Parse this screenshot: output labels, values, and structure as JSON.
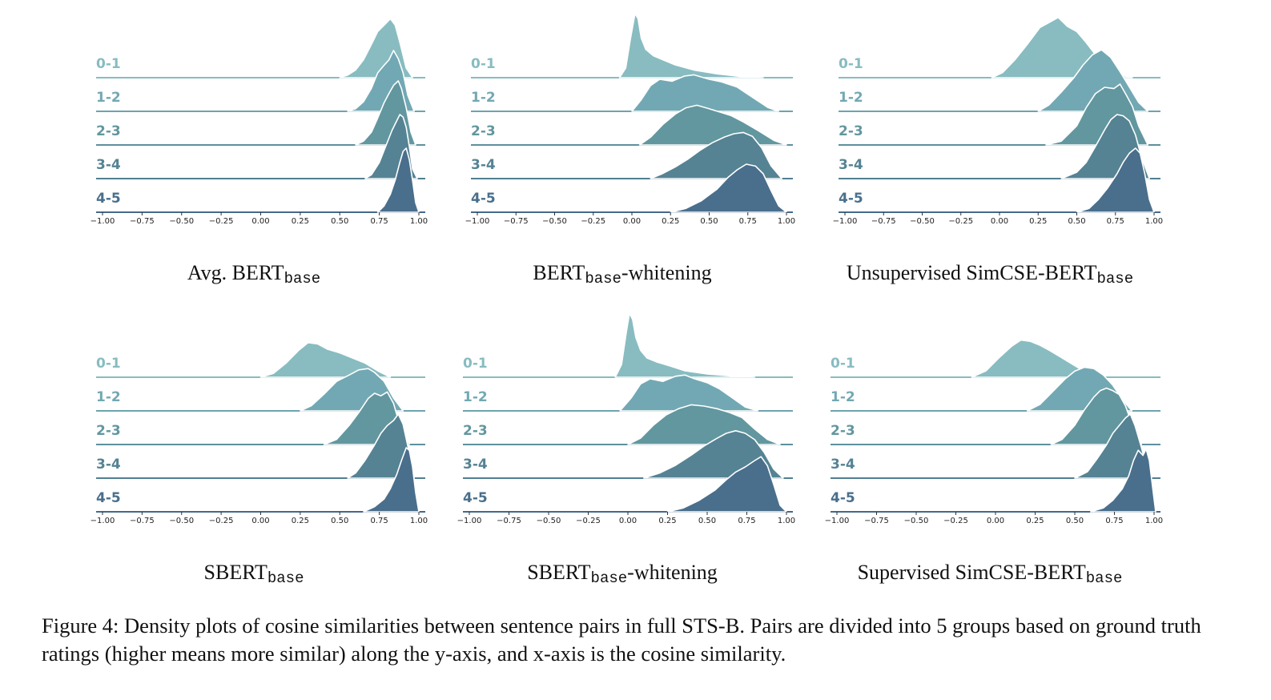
{
  "caption": "Figure 4: Density plots of cosine similarities between sentence pairs in full STS-B. Pairs are divided into 5 groups based on ground truth ratings (higher means more similar) along the y-axis, and x-axis is the cosine similarity.",
  "colors": {
    "groups": [
      "#88bcc0",
      "#72a8b3",
      "#62979f",
      "#558393",
      "#4a6f8c"
    ],
    "baseline": [
      "#88bcc0",
      "#6ea3ae",
      "#5e909d",
      "#517f91",
      "#46698a"
    ],
    "outline": "#ffffff"
  },
  "chart_data": [
    {
      "type": "ridgeline",
      "title_main": "Avg. BERT",
      "title_sub": "base",
      "title_suffix": "",
      "groups": [
        "0-1",
        "1-2",
        "2-3",
        "3-4",
        "4-5"
      ],
      "xticks": [
        "−1.00",
        "−0.75",
        "−0.50",
        "−0.25",
        "0.00",
        "0.25",
        "0.50",
        "0.75",
        "1.00"
      ],
      "xlim": [
        -1.0,
        1.1
      ],
      "series": [
        {
          "name": "0-1",
          "x": [
            0.5,
            0.55,
            0.6,
            0.65,
            0.7,
            0.74,
            0.78,
            0.82,
            0.85,
            0.88,
            0.92,
            0.96
          ],
          "y": [
            0,
            0.04,
            0.12,
            0.28,
            0.52,
            0.72,
            0.82,
            0.92,
            0.82,
            0.55,
            0.15,
            0
          ]
        },
        {
          "name": "1-2",
          "x": [
            0.55,
            0.6,
            0.65,
            0.7,
            0.74,
            0.78,
            0.81,
            0.84,
            0.87,
            0.9,
            0.93,
            0.97
          ],
          "y": [
            0,
            0.04,
            0.15,
            0.36,
            0.6,
            0.72,
            0.8,
            0.95,
            0.82,
            0.6,
            0.25,
            0
          ]
        },
        {
          "name": "2-3",
          "x": [
            0.6,
            0.65,
            0.7,
            0.74,
            0.78,
            0.81,
            0.84,
            0.87,
            0.89,
            0.92,
            0.95,
            0.98
          ],
          "y": [
            0,
            0.06,
            0.2,
            0.42,
            0.66,
            0.8,
            0.93,
            1.0,
            0.88,
            0.58,
            0.2,
            0
          ]
        },
        {
          "name": "3-4",
          "x": [
            0.66,
            0.7,
            0.75,
            0.79,
            0.83,
            0.86,
            0.88,
            0.9,
            0.92,
            0.94,
            0.96,
            0.99
          ],
          "y": [
            0,
            0.06,
            0.25,
            0.5,
            0.75,
            0.9,
            1.0,
            0.96,
            0.8,
            0.5,
            0.15,
            0
          ]
        },
        {
          "name": "4-5",
          "x": [
            0.74,
            0.78,
            0.82,
            0.85,
            0.88,
            0.9,
            0.92,
            0.94,
            0.96,
            0.98,
            1.0
          ],
          "y": [
            0,
            0.1,
            0.28,
            0.5,
            0.78,
            0.95,
            1.0,
            0.82,
            0.5,
            0.15,
            0
          ]
        }
      ]
    },
    {
      "type": "ridgeline",
      "title_main": "BERT",
      "title_sub": "base",
      "title_suffix": "-whitening",
      "groups": [
        "0-1",
        "1-2",
        "2-3",
        "3-4",
        "4-5"
      ],
      "xticks": [
        "−1.00",
        "−0.75",
        "−0.50",
        "−0.25",
        "0.00",
        "0.25",
        "0.50",
        "0.75",
        "1.00"
      ],
      "xlim": [
        -1.0,
        1.1
      ],
      "series": [
        {
          "name": "0-1",
          "x": [
            -0.08,
            -0.04,
            -0.01,
            0.02,
            0.04,
            0.06,
            0.09,
            0.14,
            0.2,
            0.28,
            0.4,
            0.55,
            0.7,
            0.85
          ],
          "y": [
            0,
            0.15,
            0.6,
            1.0,
            0.92,
            0.62,
            0.44,
            0.34,
            0.28,
            0.2,
            0.12,
            0.06,
            0.02,
            0
          ]
        },
        {
          "name": "1-2",
          "x": [
            0.0,
            0.06,
            0.12,
            0.18,
            0.26,
            0.34,
            0.4,
            0.5,
            0.58,
            0.68,
            0.78,
            0.88,
            0.95
          ],
          "y": [
            0,
            0.18,
            0.4,
            0.5,
            0.47,
            0.55,
            0.57,
            0.5,
            0.46,
            0.38,
            0.22,
            0.06,
            0
          ]
        },
        {
          "name": "2-3",
          "x": [
            0.05,
            0.12,
            0.2,
            0.28,
            0.35,
            0.42,
            0.48,
            0.56,
            0.64,
            0.72,
            0.82,
            0.92,
            1.0
          ],
          "y": [
            0,
            0.12,
            0.32,
            0.48,
            0.58,
            0.62,
            0.58,
            0.52,
            0.46,
            0.36,
            0.22,
            0.07,
            0
          ]
        },
        {
          "name": "3-4",
          "x": [
            0.12,
            0.2,
            0.28,
            0.36,
            0.44,
            0.52,
            0.6,
            0.66,
            0.72,
            0.78,
            0.84,
            0.9,
            0.97
          ],
          "y": [
            0,
            0.08,
            0.18,
            0.3,
            0.44,
            0.56,
            0.65,
            0.7,
            0.72,
            0.66,
            0.48,
            0.2,
            0
          ]
        },
        {
          "name": "4-5",
          "x": [
            0.25,
            0.35,
            0.45,
            0.55,
            0.62,
            0.68,
            0.74,
            0.8,
            0.85,
            0.9,
            0.95,
            1.0
          ],
          "y": [
            0,
            0.06,
            0.18,
            0.36,
            0.54,
            0.66,
            0.75,
            0.72,
            0.6,
            0.34,
            0.1,
            0
          ]
        }
      ]
    },
    {
      "type": "ridgeline",
      "title_main": "Unsupervised SimCSE-BERT",
      "title_sub": "base",
      "title_suffix": "",
      "groups": [
        "0-1",
        "1-2",
        "2-3",
        "3-4",
        "4-5"
      ],
      "xticks": [
        "−1.00",
        "−0.75",
        "−0.50",
        "−0.25",
        "0.00",
        "0.25",
        "0.50",
        "0.75",
        "1.00"
      ],
      "xlim": [
        -1.0,
        1.1
      ],
      "series": [
        {
          "name": "0-1",
          "x": [
            -0.05,
            0.02,
            0.1,
            0.18,
            0.26,
            0.32,
            0.38,
            0.44,
            0.5,
            0.56,
            0.62,
            0.7,
            0.78,
            0.86
          ],
          "y": [
            0,
            0.08,
            0.28,
            0.52,
            0.78,
            0.86,
            0.94,
            0.8,
            0.72,
            0.55,
            0.36,
            0.16,
            0.04,
            0
          ]
        },
        {
          "name": "1-2",
          "x": [
            0.25,
            0.32,
            0.4,
            0.48,
            0.54,
            0.6,
            0.66,
            0.72,
            0.78,
            0.84,
            0.9,
            0.96
          ],
          "y": [
            0,
            0.1,
            0.3,
            0.52,
            0.72,
            0.88,
            0.96,
            0.84,
            0.62,
            0.38,
            0.14,
            0
          ]
        },
        {
          "name": "2-3",
          "x": [
            0.3,
            0.4,
            0.5,
            0.56,
            0.62,
            0.68,
            0.74,
            0.78,
            0.82,
            0.86,
            0.9,
            0.96
          ],
          "y": [
            0,
            0.06,
            0.3,
            0.58,
            0.8,
            0.9,
            0.88,
            0.95,
            0.78,
            0.6,
            0.3,
            0
          ]
        },
        {
          "name": "3-4",
          "x": [
            0.4,
            0.5,
            0.56,
            0.62,
            0.68,
            0.72,
            0.76,
            0.8,
            0.84,
            0.88,
            0.92,
            0.97
          ],
          "y": [
            0,
            0.1,
            0.25,
            0.5,
            0.76,
            0.92,
            1.0,
            0.98,
            0.9,
            0.68,
            0.32,
            0
          ]
        },
        {
          "name": "4-5",
          "x": [
            0.5,
            0.58,
            0.64,
            0.7,
            0.76,
            0.8,
            0.84,
            0.88,
            0.91,
            0.94,
            0.97,
            1.0
          ],
          "y": [
            0,
            0.06,
            0.2,
            0.38,
            0.6,
            0.78,
            0.92,
            1.0,
            0.92,
            0.6,
            0.2,
            0
          ]
        }
      ]
    },
    {
      "type": "ridgeline",
      "title_main": "SBERT",
      "title_sub": "base",
      "title_suffix": "",
      "groups": [
        "0-1",
        "1-2",
        "2-3",
        "3-4",
        "4-5"
      ],
      "xticks": [
        "−1.00",
        "−0.75",
        "−0.50",
        "−0.25",
        "0.00",
        "0.25",
        "0.50",
        "0.75",
        "1.00"
      ],
      "xlim": [
        -1.0,
        1.1
      ],
      "series": [
        {
          "name": "0-1",
          "x": [
            0.0,
            0.08,
            0.16,
            0.24,
            0.3,
            0.36,
            0.42,
            0.5,
            0.58,
            0.66,
            0.74,
            0.82
          ],
          "y": [
            0,
            0.06,
            0.22,
            0.42,
            0.54,
            0.52,
            0.44,
            0.38,
            0.3,
            0.22,
            0.1,
            0
          ]
        },
        {
          "name": "1-2",
          "x": [
            0.25,
            0.32,
            0.4,
            0.48,
            0.56,
            0.62,
            0.68,
            0.72,
            0.78,
            0.84,
            0.9
          ],
          "y": [
            0,
            0.08,
            0.26,
            0.46,
            0.56,
            0.64,
            0.66,
            0.6,
            0.46,
            0.2,
            0
          ]
        },
        {
          "name": "2-3",
          "x": [
            0.4,
            0.48,
            0.56,
            0.62,
            0.68,
            0.72,
            0.76,
            0.8,
            0.84,
            0.88,
            0.94
          ],
          "y": [
            0,
            0.08,
            0.3,
            0.5,
            0.72,
            0.8,
            0.76,
            0.82,
            0.64,
            0.3,
            0
          ]
        },
        {
          "name": "3-4",
          "x": [
            0.55,
            0.6,
            0.66,
            0.72,
            0.76,
            0.8,
            0.84,
            0.87,
            0.9,
            0.93,
            0.97
          ],
          "y": [
            0,
            0.08,
            0.28,
            0.52,
            0.7,
            0.82,
            0.9,
            1.0,
            0.84,
            0.5,
            0
          ]
        },
        {
          "name": "4-5",
          "x": [
            0.65,
            0.72,
            0.78,
            0.82,
            0.86,
            0.89,
            0.92,
            0.94,
            0.96,
            0.98,
            1.0
          ],
          "y": [
            0,
            0.08,
            0.2,
            0.36,
            0.58,
            0.8,
            1.0,
            0.96,
            0.7,
            0.3,
            0
          ]
        }
      ]
    },
    {
      "type": "ridgeline",
      "title_main": "SBERT",
      "title_sub": "base",
      "title_suffix": "-whitening",
      "groups": [
        "0-1",
        "1-2",
        "2-3",
        "3-4",
        "4-5"
      ],
      "xticks": [
        "−1.00",
        "−0.75",
        "−0.50",
        "−0.25",
        "0.00",
        "0.25",
        "0.50",
        "0.75",
        "1.00"
      ],
      "xlim": [
        -1.0,
        1.1
      ],
      "series": [
        {
          "name": "0-1",
          "x": [
            -0.08,
            -0.04,
            -0.01,
            0.01,
            0.03,
            0.05,
            0.08,
            0.12,
            0.18,
            0.26,
            0.36,
            0.5,
            0.65,
            0.8
          ],
          "y": [
            0,
            0.2,
            0.7,
            1.0,
            0.9,
            0.62,
            0.42,
            0.3,
            0.24,
            0.18,
            0.1,
            0.05,
            0.02,
            0
          ]
        },
        {
          "name": "1-2",
          "x": [
            -0.05,
            0.02,
            0.08,
            0.14,
            0.22,
            0.3,
            0.36,
            0.42,
            0.5,
            0.58,
            0.66,
            0.74,
            0.82
          ],
          "y": [
            0,
            0.2,
            0.42,
            0.5,
            0.46,
            0.54,
            0.56,
            0.5,
            0.44,
            0.34,
            0.2,
            0.06,
            0
          ]
        },
        {
          "name": "2-3",
          "x": [
            0.0,
            0.08,
            0.16,
            0.24,
            0.32,
            0.4,
            0.48,
            0.56,
            0.64,
            0.72,
            0.8,
            0.88,
            0.96
          ],
          "y": [
            0,
            0.1,
            0.3,
            0.46,
            0.56,
            0.62,
            0.6,
            0.56,
            0.5,
            0.42,
            0.24,
            0.08,
            0
          ]
        },
        {
          "name": "3-4",
          "x": [
            0.1,
            0.2,
            0.3,
            0.4,
            0.48,
            0.56,
            0.62,
            0.68,
            0.74,
            0.8,
            0.86,
            0.92,
            0.98
          ],
          "y": [
            0,
            0.08,
            0.2,
            0.36,
            0.5,
            0.62,
            0.7,
            0.74,
            0.7,
            0.6,
            0.4,
            0.14,
            0
          ]
        },
        {
          "name": "4-5",
          "x": [
            0.25,
            0.35,
            0.45,
            0.55,
            0.62,
            0.68,
            0.74,
            0.8,
            0.84,
            0.88,
            0.92,
            0.96,
            1.0
          ],
          "y": [
            0,
            0.06,
            0.18,
            0.34,
            0.5,
            0.62,
            0.7,
            0.8,
            0.86,
            0.72,
            0.42,
            0.1,
            0
          ]
        }
      ]
    },
    {
      "type": "ridgeline",
      "title_main": "Supervised SimCSE-BERT",
      "title_sub": "base",
      "title_suffix": "",
      "groups": [
        "0-1",
        "1-2",
        "2-3",
        "3-4",
        "4-5"
      ],
      "xticks": [
        "−1.00",
        "−0.75",
        "−0.50",
        "−0.25",
        "0.00",
        "0.25",
        "0.50",
        "0.75",
        "1.00"
      ],
      "xlim": [
        -1.0,
        1.1
      ],
      "series": [
        {
          "name": "0-1",
          "x": [
            -0.15,
            -0.06,
            0.02,
            0.1,
            0.16,
            0.22,
            0.28,
            0.34,
            0.42,
            0.5,
            0.58,
            0.66
          ],
          "y": [
            0,
            0.1,
            0.3,
            0.48,
            0.58,
            0.56,
            0.5,
            0.42,
            0.3,
            0.18,
            0.06,
            0
          ]
        },
        {
          "name": "1-2",
          "x": [
            0.2,
            0.28,
            0.36,
            0.44,
            0.5,
            0.56,
            0.62,
            0.68,
            0.74,
            0.8,
            0.86
          ],
          "y": [
            0,
            0.1,
            0.3,
            0.5,
            0.62,
            0.68,
            0.66,
            0.56,
            0.4,
            0.18,
            0
          ]
        },
        {
          "name": "2-3",
          "x": [
            0.35,
            0.42,
            0.5,
            0.56,
            0.62,
            0.66,
            0.7,
            0.74,
            0.78,
            0.82,
            0.86,
            0.92
          ],
          "y": [
            0,
            0.08,
            0.3,
            0.54,
            0.74,
            0.84,
            0.88,
            0.84,
            0.78,
            0.6,
            0.32,
            0
          ]
        },
        {
          "name": "3-4",
          "x": [
            0.5,
            0.58,
            0.64,
            0.7,
            0.74,
            0.78,
            0.82,
            0.85,
            0.88,
            0.92,
            0.97
          ],
          "y": [
            0,
            0.1,
            0.3,
            0.52,
            0.7,
            0.82,
            0.94,
            1.0,
            0.82,
            0.48,
            0
          ]
        },
        {
          "name": "4-5",
          "x": [
            0.6,
            0.68,
            0.74,
            0.8,
            0.84,
            0.87,
            0.9,
            0.93,
            0.95,
            0.97,
            0.99,
            1.01
          ],
          "y": [
            0,
            0.06,
            0.18,
            0.36,
            0.56,
            0.8,
            0.96,
            0.88,
            0.98,
            0.8,
            0.4,
            0
          ]
        }
      ]
    }
  ]
}
